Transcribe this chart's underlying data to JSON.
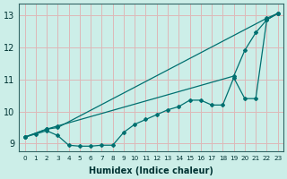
{
  "xlabel": "Humidex (Indice chaleur)",
  "bg_color": "#cceee8",
  "grid_color": "#ddb8b8",
  "line_color": "#007070",
  "xlim": [
    -0.5,
    23.5
  ],
  "ylim": [
    8.75,
    13.35
  ],
  "xticks": [
    0,
    1,
    2,
    3,
    4,
    5,
    6,
    7,
    8,
    9,
    10,
    11,
    12,
    13,
    14,
    15,
    16,
    17,
    18,
    19,
    20,
    21,
    22,
    23
  ],
  "yticks": [
    9,
    10,
    11,
    12,
    13
  ],
  "line_top_x": [
    0,
    2,
    3,
    22,
    23
  ],
  "line_top_y": [
    9.2,
    9.45,
    9.5,
    12.9,
    13.05
  ],
  "line_mid_x": [
    0,
    2,
    3,
    19,
    20,
    21,
    22,
    23
  ],
  "line_mid_y": [
    9.2,
    9.45,
    9.55,
    11.1,
    11.9,
    12.45,
    12.85,
    13.05
  ],
  "line_bot_x": [
    0,
    1,
    2,
    3,
    4,
    5,
    6,
    7,
    8,
    9,
    10,
    11,
    12,
    13,
    14,
    15,
    16,
    17,
    18,
    19,
    20,
    21,
    22,
    23
  ],
  "line_bot_y": [
    9.2,
    9.3,
    9.4,
    9.25,
    8.95,
    8.92,
    8.92,
    8.95,
    8.95,
    9.35,
    9.6,
    9.75,
    9.9,
    10.05,
    10.15,
    10.35,
    10.35,
    10.2,
    10.2,
    11.05,
    10.4,
    10.4,
    12.85,
    13.05
  ]
}
